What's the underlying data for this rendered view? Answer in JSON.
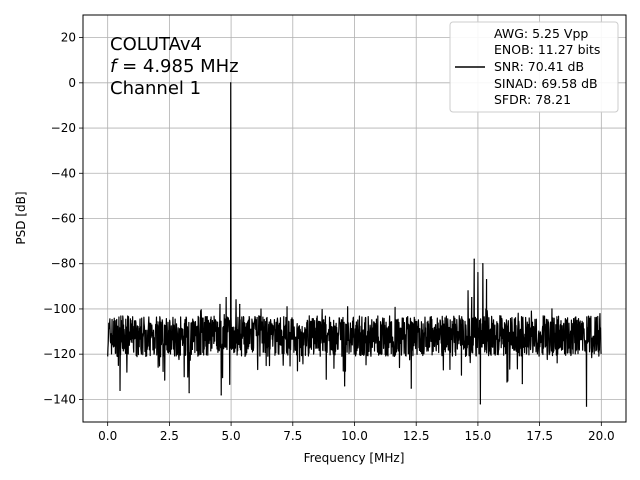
{
  "chart_data": {
    "type": "line",
    "title": "",
    "xlabel": "Frequency [MHz]",
    "ylabel": "PSD [dB]",
    "xlim": [
      -1,
      21
    ],
    "ylim": [
      -150,
      30
    ],
    "grid": true,
    "x_ticks": [
      0.0,
      2.5,
      5.0,
      7.5,
      10.0,
      12.5,
      15.0,
      17.5,
      20.0
    ],
    "x_tick_labels": [
      "0.0",
      "2.5",
      "5.0",
      "7.5",
      "10.0",
      "12.5",
      "15.0",
      "17.5",
      "20.0"
    ],
    "y_ticks": [
      -140,
      -120,
      -100,
      -80,
      -60,
      -40,
      -20,
      0,
      20
    ],
    "y_tick_labels": [
      "−140",
      "−120",
      "−100",
      "−80",
      "−60",
      "−40",
      "−20",
      "0",
      "20"
    ],
    "annotation": {
      "line1": "COLUTAv4",
      "line2_symbol": "f",
      "line2_rest": " = 4.985 MHz",
      "line3": "Channel 1"
    },
    "legend": {
      "placement": "top-right",
      "entries": [
        "AWG: 5.25 Vpp",
        "ENOB: 11.27 bits",
        "SNR: 70.41 dB",
        "SINAD: 69.58 dB",
        "SFDR: 78.21"
      ],
      "line_color": "#000000"
    },
    "series": [
      {
        "color": "#000000",
        "noise_floor_mean": -112,
        "noise_floor_min": -143,
        "noise_floor_max": -99,
        "x_start": 0.0,
        "x_end": 20.0,
        "peaks": [
          {
            "x": 4.985,
            "y": 0
          },
          {
            "x": 4.8,
            "y": -95
          },
          {
            "x": 5.2,
            "y": -96
          },
          {
            "x": 5.35,
            "y": -98
          },
          {
            "x": 4.55,
            "y": -98
          },
          {
            "x": 14.6,
            "y": -92
          },
          {
            "x": 14.75,
            "y": -95
          },
          {
            "x": 14.85,
            "y": -78
          },
          {
            "x": 15.0,
            "y": -84
          },
          {
            "x": 15.2,
            "y": -80
          },
          {
            "x": 15.35,
            "y": -87
          },
          {
            "x": 15.1,
            "y": -142
          },
          {
            "x": 19.4,
            "y": -143
          },
          {
            "x": 0.5,
            "y": -136
          },
          {
            "x": 3.3,
            "y": -137
          },
          {
            "x": 4.6,
            "y": -138
          },
          {
            "x": 12.3,
            "y": -135
          },
          {
            "x": 9.6,
            "y": -134
          },
          {
            "x": 16.8,
            "y": -133
          }
        ]
      }
    ]
  }
}
